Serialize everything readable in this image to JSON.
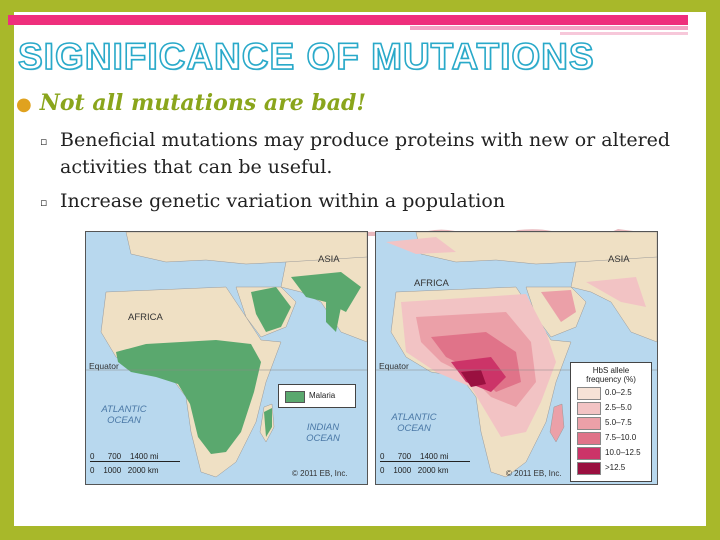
{
  "slide": {
    "title": "SIGNIFICANCE OF MUTATIONS",
    "bullet_main": "Not all mutations are bad!",
    "sub_bullets": [
      "Beneficial mutations may produce proteins with new or altered activities that can be useful.",
      "Increase genetic variation within a population"
    ]
  },
  "map_left": {
    "label_asia": "ASIA",
    "label_africa": "AFRICA",
    "label_equator": "Equator",
    "label_atlantic": "ATLANTIC\nOCEAN",
    "label_indian": "INDIAN\nOCEAN",
    "legend_label": "Malaria",
    "scale_mi": "0      700    1400 mi",
    "scale_km": "0    1000   2000 km",
    "copyright": "© 2011 EB, Inc."
  },
  "map_right": {
    "label_asia": "ASIA",
    "label_africa": "AFRICA",
    "label_equator": "Equator",
    "label_atlantic": "ATLANTIC\nOCEAN",
    "legend_title": "HbS allele\nfrequency (%)",
    "legend_items": [
      "0.0–2.5",
      "2.5–5.0",
      "5.0–7.5",
      "7.5–10.0",
      "10.0–12.5",
      ">12.5"
    ],
    "scale_mi": "0      700    1400 mi",
    "scale_km": "0    1000   2000 km",
    "copyright": "© 2011 EB, Inc."
  },
  "colors": {
    "frame": "#a8b82a",
    "title_outline": "#29a9c9",
    "bullet_main": "#8aa51c",
    "malaria": "#5aa86e",
    "land": "#efe0c4",
    "water": "#b8d8ee",
    "hbs_scale": [
      "#f6e2d6",
      "#f2c3c4",
      "#eba0a8",
      "#e07389",
      "#cc3468",
      "#9a1040"
    ]
  }
}
